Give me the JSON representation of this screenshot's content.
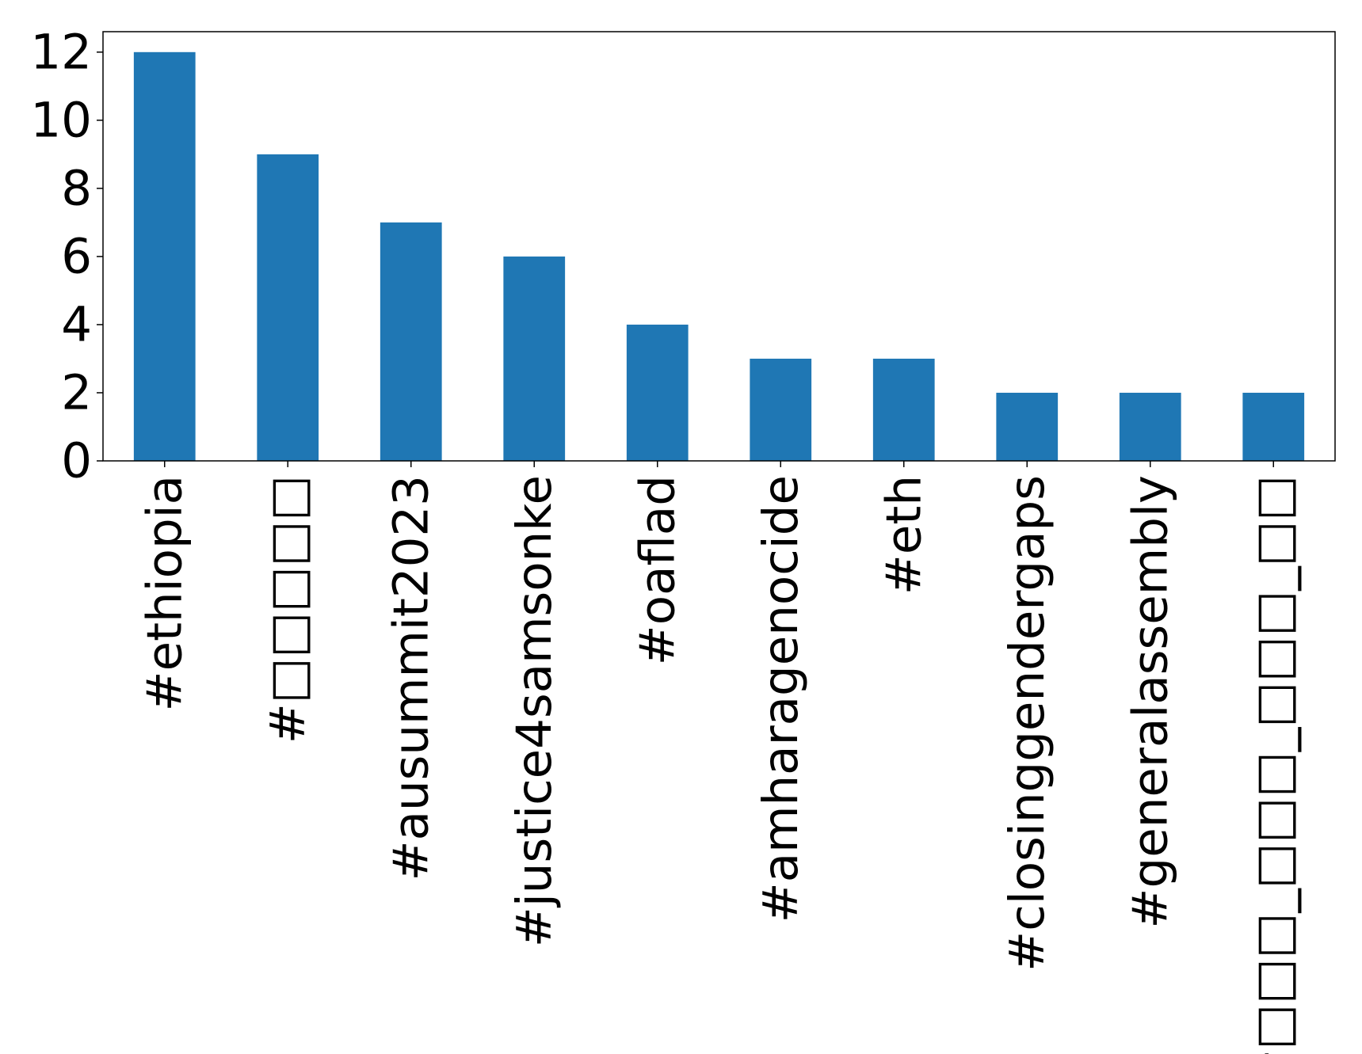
{
  "chart_data": {
    "type": "bar",
    "title": "",
    "xlabel": "",
    "ylabel": "",
    "categories": [
      "#ethiopia",
      "#□□□□□",
      "#ausummit2023",
      "#justice4samsonke",
      "#oaflad",
      "#amharagenocide",
      "#eth",
      "#closinggendergaps",
      "#generalassembly",
      "#□□□_□□□_□□□_□□"
    ],
    "values": [
      12,
      9,
      7,
      6,
      4,
      3,
      3,
      2,
      2,
      2
    ],
    "ylim": [
      0,
      12.6
    ],
    "yticks": [
      0,
      2,
      4,
      6,
      8,
      10,
      12
    ],
    "grid": false,
    "legend": "none",
    "bar_color": "#1f77b4"
  }
}
